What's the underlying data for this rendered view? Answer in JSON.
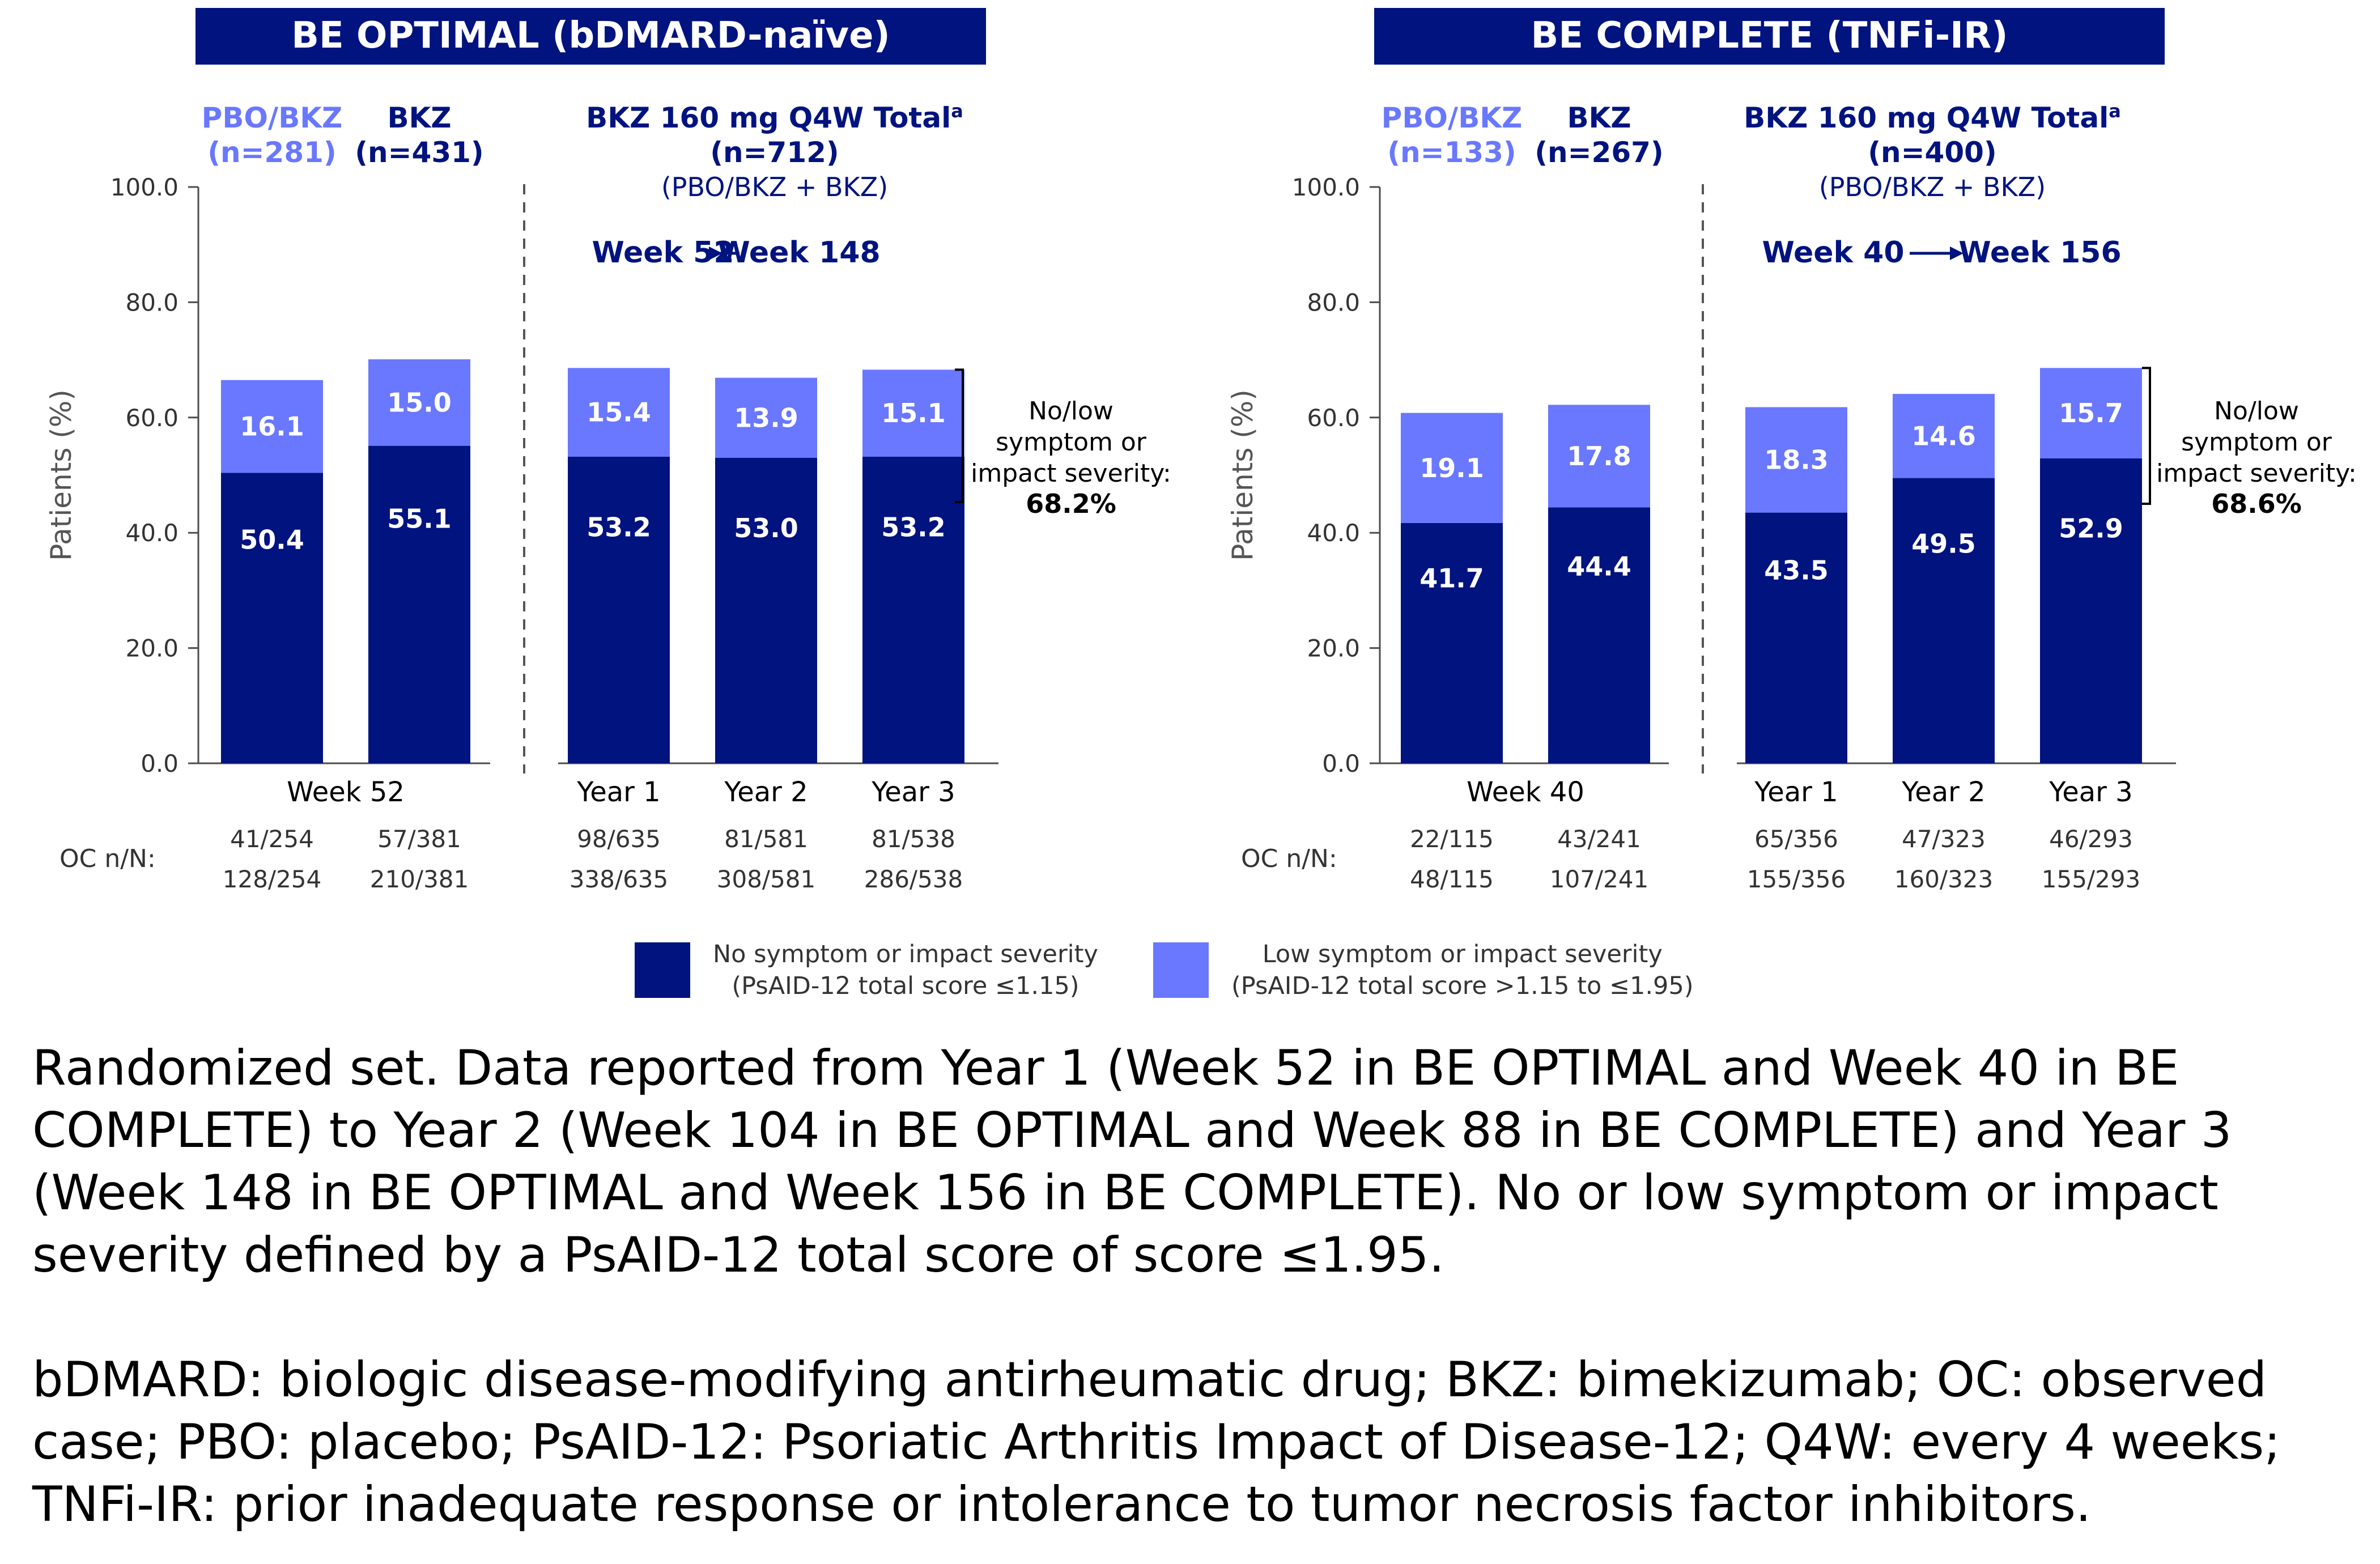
{
  "colors": {
    "dark": "#00137f",
    "light": "#6978ff",
    "axis": "#4d4d4d",
    "header_bg": "#00137f"
  },
  "yaxis": {
    "label": "Patients (%)",
    "ticks": [
      "100.0",
      "80.0",
      "60.0",
      "40.0",
      "20.0",
      "0.0"
    ]
  },
  "oc_label": "OC n/N:",
  "chart_data": [
    {
      "type": "bar",
      "stacked": true,
      "title": "BE OPTIMAL (bDMARD-naïve)",
      "ylabel": "Patients (%)",
      "ylim": [
        0,
        100
      ],
      "arm_labels": [
        {
          "name": "PBO/BKZ",
          "n": "(n=281)",
          "color": "light"
        },
        {
          "name": "BKZ",
          "n": "(n=431)",
          "color": "dark"
        }
      ],
      "total_header": {
        "line1": "BKZ 160 mg Q4W Total",
        "sup": "a",
        "line2": "(n=712)",
        "line3": "(PBO/BKZ + BKZ)"
      },
      "week_range": {
        "from": "Week 52",
        "to": "Week 148"
      },
      "group_labels": [
        "Week 52",
        "Year 1",
        "Year 2",
        "Year 3"
      ],
      "bars": [
        {
          "group": "Week 52",
          "no": 50.4,
          "low": 16.1,
          "no_label": "50.4",
          "low_label": "16.1",
          "oc_low": "41/254",
          "oc_no": "128/254"
        },
        {
          "group": "Week 52",
          "no": 55.1,
          "low": 15.0,
          "no_label": "55.1",
          "low_label": "15.0",
          "oc_low": "57/381",
          "oc_no": "210/381"
        },
        {
          "group": "Year 1",
          "no": 53.2,
          "low": 15.4,
          "no_label": "53.2",
          "low_label": "15.4",
          "oc_low": "98/635",
          "oc_no": "338/635"
        },
        {
          "group": "Year 2",
          "no": 53.0,
          "low": 13.9,
          "no_label": "53.0",
          "low_label": "13.9",
          "oc_low": "81/581",
          "oc_no": "308/581"
        },
        {
          "group": "Year 3",
          "no": 53.2,
          "low": 15.1,
          "no_label": "53.2",
          "low_label": "15.1",
          "oc_low": "81/538",
          "oc_no": "286/538"
        }
      ],
      "annotation": {
        "line1": "No/low",
        "line2": "symptom or",
        "line3": "impact severity:",
        "value": "68.2%"
      },
      "series": [
        {
          "name": "No symptom or impact severity (PsAID-12 total score ≤1.15)",
          "values": [
            50.4,
            55.1,
            53.2,
            53.0,
            53.2
          ]
        },
        {
          "name": "Low symptom or impact severity (PsAID-12 total score >1.15 to ≤1.95)",
          "values": [
            16.1,
            15.0,
            15.4,
            13.9,
            15.1
          ]
        }
      ]
    },
    {
      "type": "bar",
      "stacked": true,
      "title": "BE COMPLETE (TNFi-IR)",
      "ylabel": "Patients (%)",
      "ylim": [
        0,
        100
      ],
      "arm_labels": [
        {
          "name": "PBO/BKZ",
          "n": "(n=133)",
          "color": "light"
        },
        {
          "name": "BKZ",
          "n": "(n=267)",
          "color": "dark"
        }
      ],
      "total_header": {
        "line1": "BKZ 160 mg Q4W Total",
        "sup": "a",
        "line2": "(n=400)",
        "line3": "(PBO/BKZ + BKZ)"
      },
      "week_range": {
        "from": "Week 40",
        "to": "Week 156"
      },
      "group_labels": [
        "Week 40",
        "Year 1",
        "Year 2",
        "Year 3"
      ],
      "bars": [
        {
          "group": "Week 40",
          "no": 41.7,
          "low": 19.1,
          "no_label": "41.7",
          "low_label": "19.1",
          "oc_low": "22/115",
          "oc_no": "48/115"
        },
        {
          "group": "Week 40",
          "no": 44.4,
          "low": 17.8,
          "no_label": "44.4",
          "low_label": "17.8",
          "oc_low": "43/241",
          "oc_no": "107/241"
        },
        {
          "group": "Year 1",
          "no": 43.5,
          "low": 18.3,
          "no_label": "43.5",
          "low_label": "18.3",
          "oc_low": "65/356",
          "oc_no": "155/356"
        },
        {
          "group": "Year 2",
          "no": 49.5,
          "low": 14.6,
          "no_label": "49.5",
          "low_label": "14.6",
          "oc_low": "47/323",
          "oc_no": "160/323"
        },
        {
          "group": "Year 3",
          "no": 52.9,
          "low": 15.7,
          "no_label": "52.9",
          "low_label": "15.7",
          "oc_low": "46/293",
          "oc_no": "155/293"
        }
      ],
      "annotation": {
        "line1": "No/low",
        "line2": "symptom or",
        "line3": "impact severity:",
        "value": "68.6%"
      },
      "series": [
        {
          "name": "No symptom or impact severity (PsAID-12 total score ≤1.15)",
          "values": [
            41.7,
            44.4,
            43.5,
            49.5,
            52.9
          ]
        },
        {
          "name": "Low symptom or impact severity (PsAID-12 total score >1.15 to ≤1.95)",
          "values": [
            19.1,
            17.8,
            18.3,
            14.6,
            15.7
          ]
        }
      ]
    }
  ],
  "legend": [
    {
      "line1": "No symptom or impact severity",
      "line2": "(PsAID-12 total score ≤1.15)",
      "color": "dark"
    },
    {
      "line1": "Low symptom or impact severity",
      "line2": "(PsAID-12 total score >1.15 to ≤1.95)",
      "color": "light"
    }
  ],
  "footnotes": {
    "p1": "Randomized set. Data reported from Year 1 (Week 52 in BE OPTIMAL and Week 40 in BE COMPLETE) to Year 2 (Week 104 in BE OPTIMAL and Week 88 in BE COMPLETE) and Year 3 (Week 148 in BE OPTIMAL and Week 156 in BE COMPLETE). No or low symptom or impact severity defined by a PsAID-12 total score of score ≤1.95.",
    "p2": "bDMARD: biologic disease-modifying antirheumatic drug; BKZ: bimekizumab; OC: observed case; PBO: placebo; PsAID-12: Psoriatic Arthritis Impact of Disease-12; Q4W: every 4 weeks; TNFi-IR: prior inadequate response or intolerance to tumor necrosis factor inhibitors."
  }
}
